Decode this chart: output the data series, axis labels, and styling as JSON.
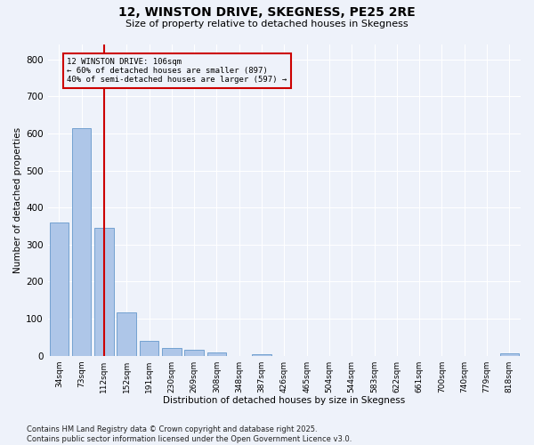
{
  "title": "12, WINSTON DRIVE, SKEGNESS, PE25 2RE",
  "subtitle": "Size of property relative to detached houses in Skegness",
  "xlabel": "Distribution of detached houses by size in Skegness",
  "ylabel": "Number of detached properties",
  "bar_labels": [
    "34sqm",
    "73sqm",
    "112sqm",
    "152sqm",
    "191sqm",
    "230sqm",
    "269sqm",
    "308sqm",
    "348sqm",
    "387sqm",
    "426sqm",
    "465sqm",
    "504sqm",
    "544sqm",
    "583sqm",
    "622sqm",
    "661sqm",
    "700sqm",
    "740sqm",
    "779sqm",
    "818sqm"
  ],
  "bar_values": [
    360,
    615,
    345,
    117,
    40,
    20,
    16,
    8,
    0,
    5,
    0,
    0,
    0,
    0,
    0,
    0,
    0,
    0,
    0,
    0,
    7
  ],
  "bar_color": "#aec6e8",
  "bar_edge_color": "#6699cc",
  "vline_x": 2,
  "vline_color": "#cc0000",
  "annotation_text": "12 WINSTON DRIVE: 106sqm\n← 60% of detached houses are smaller (897)\n40% of semi-detached houses are larger (597) →",
  "annotation_box_color": "#cc0000",
  "ylim": [
    0,
    840
  ],
  "yticks": [
    0,
    100,
    200,
    300,
    400,
    500,
    600,
    700,
    800
  ],
  "background_color": "#eef2fa",
  "grid_color": "#ffffff",
  "footer_line1": "Contains HM Land Registry data © Crown copyright and database right 2025.",
  "footer_line2": "Contains public sector information licensed under the Open Government Licence v3.0."
}
